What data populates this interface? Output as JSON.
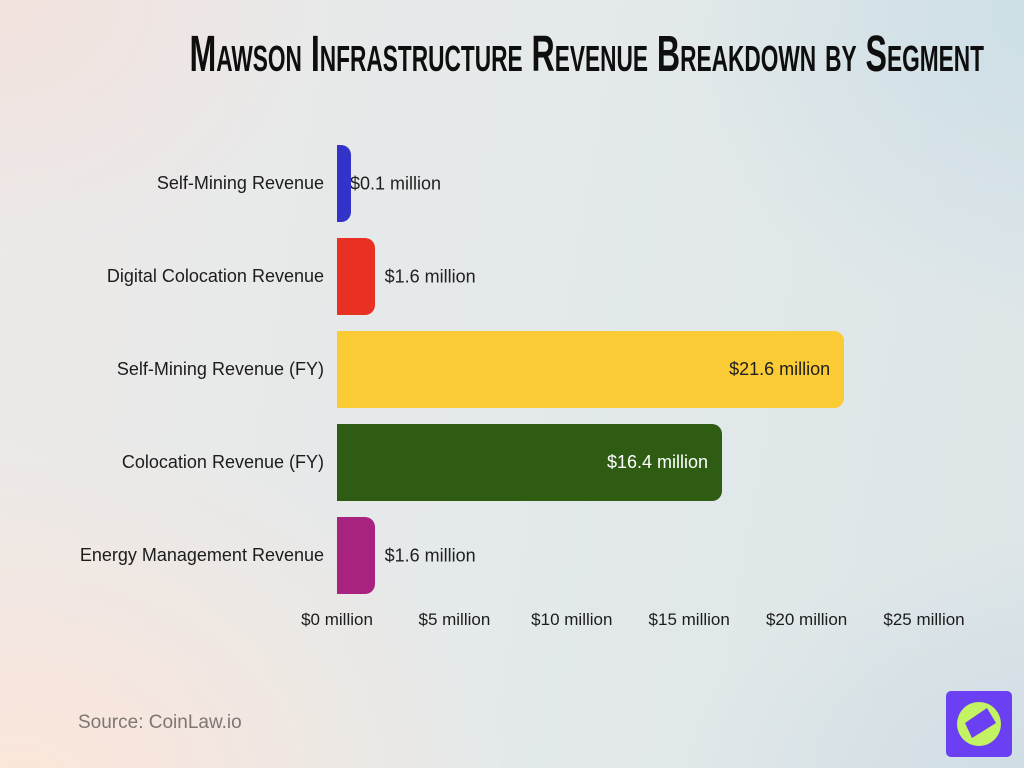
{
  "title": "Mawson Infrastructure Revenue Breakdown by Segment",
  "source": "Source: CoinLaw.io",
  "chart_data": {
    "type": "bar",
    "orientation": "horizontal",
    "title": "Mawson Infrastructure Revenue Breakdown by Segment",
    "categories": [
      "Self-Mining Revenue",
      "Digital Colocation Revenue",
      "Self-Mining Revenue (FY)",
      "Colocation Revenue (FY)",
      "Energy Management Revenue"
    ],
    "values": [
      0.1,
      1.6,
      21.6,
      16.4,
      1.6
    ],
    "value_labels": [
      "$0.1 million",
      "$1.6 million",
      "$21.6 million",
      "$16.4 million",
      "$1.6 million"
    ],
    "bar_colors": [
      "#3333c9",
      "#e93123",
      "#fbcb35",
      "#2f5c13",
      "#a8237f"
    ],
    "label_inside": [
      false,
      false,
      true,
      true,
      false
    ],
    "label_color_inside": [
      "#1f1f1f",
      "#1f1f1f",
      "#1f1f1f",
      "#ffffff",
      "#1f1f1f"
    ],
    "x_ticks": [
      "$0 million",
      "$5 million",
      "$10 million",
      "$15 million",
      "$20 million",
      "$25 million"
    ],
    "x_tick_values": [
      0,
      5,
      10,
      15,
      20,
      25
    ],
    "xlim": [
      0,
      25
    ],
    "unit": "million USD",
    "grid": false,
    "legend": false
  },
  "logo": {
    "icon": "compass-icon",
    "background_color": "#6b3ff2",
    "circle_color": "#c3f262"
  }
}
